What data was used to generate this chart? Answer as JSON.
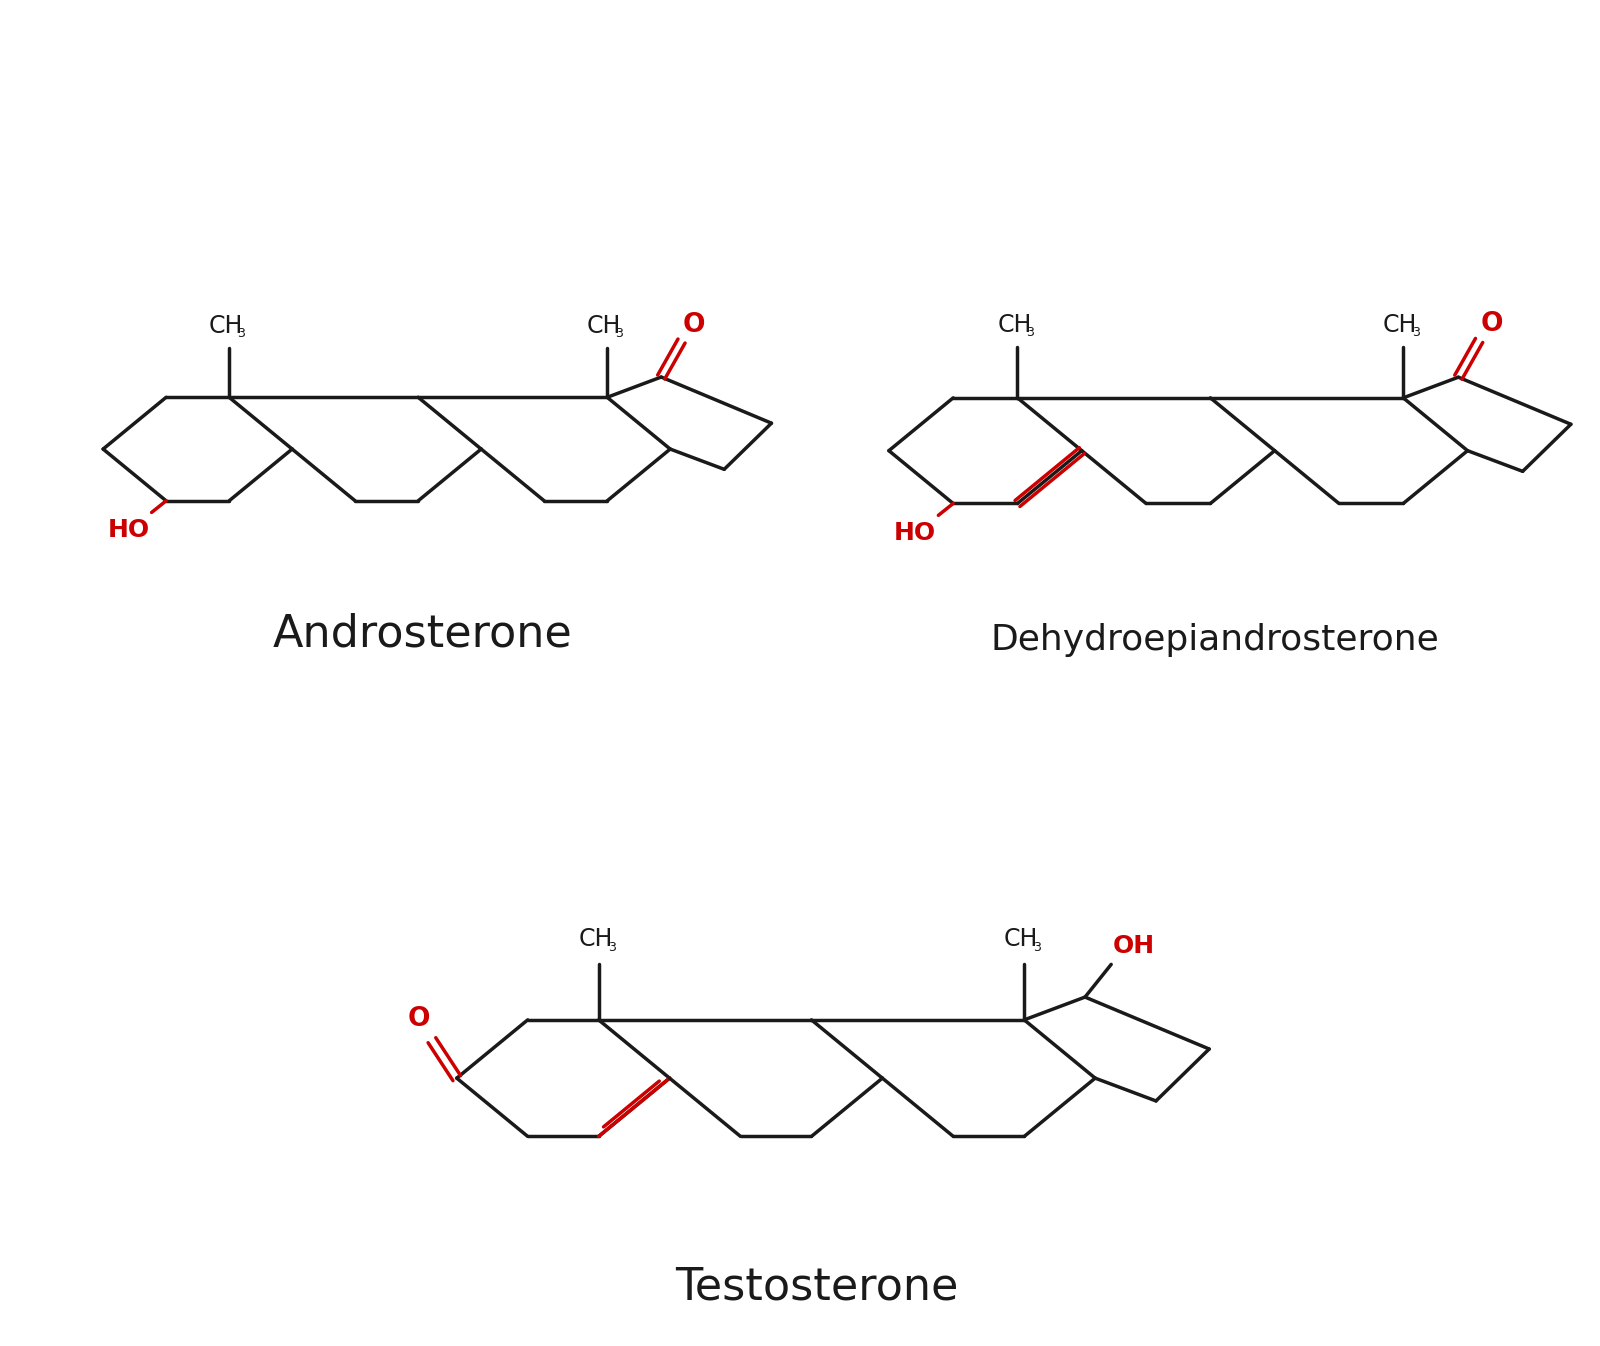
{
  "background_color": "#ffffff",
  "bond_color": "#1a1a1a",
  "red_color": "#cc0000",
  "line_width": 2.5,
  "label_fontsize": 32,
  "group_fontsize_main": 17,
  "group_fontsize_sub": 13,
  "footer_color": "#4a8ab5",
  "molecules": [
    "Androsterone",
    "Dehydroepiandrosterone",
    "Testosterone"
  ]
}
